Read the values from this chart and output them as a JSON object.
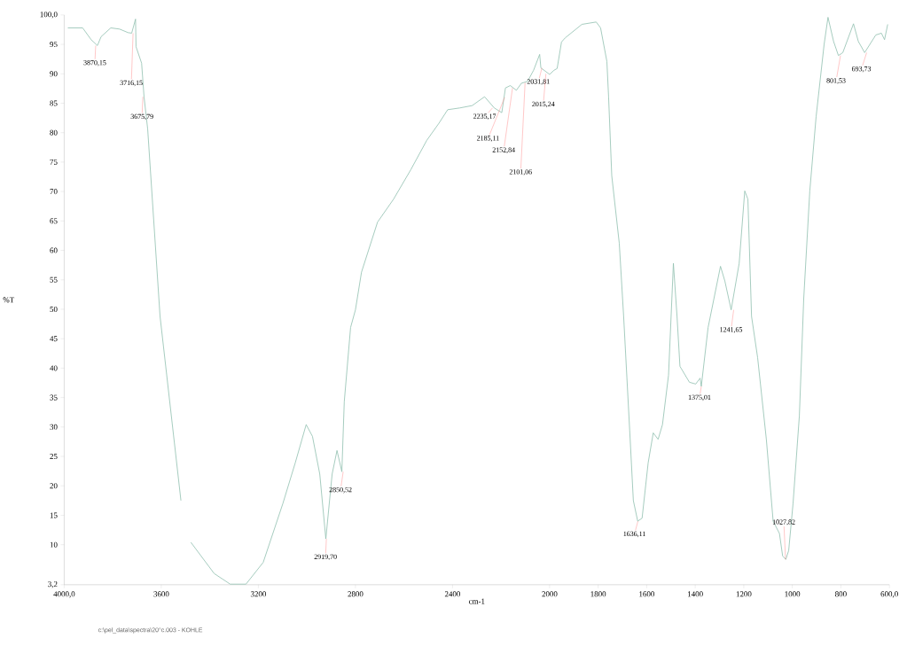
{
  "chart_data": {
    "type": "line",
    "xlabel": "cm-1",
    "ylabel": "%T",
    "color": "#8fbfae",
    "xlim": [
      4000,
      600
    ],
    "ylim": [
      3.2,
      100
    ],
    "xticks": [
      {
        "value": 4000,
        "label": "4000,0"
      },
      3600,
      3200,
      2800,
      2400,
      2000,
      1800,
      1600,
      1400,
      1200,
      1000,
      800,
      {
        "value": 600,
        "label": "600,0"
      }
    ],
    "yticks": [
      {
        "value": 3.2,
        "label": "3,2"
      },
      10,
      15,
      20,
      25,
      30,
      35,
      40,
      45,
      50,
      55,
      60,
      65,
      70,
      75,
      80,
      85,
      90,
      95,
      {
        "value": 100,
        "label": "100,0"
      }
    ],
    "x": [
      3985,
      3924,
      3889,
      3863,
      3848,
      3808,
      3772,
      3737,
      3722,
      3706,
      3704,
      3681,
      3671,
      3656,
      3605,
      3519,
      3500,
      3478,
      3382,
      3316,
      3251,
      3180,
      3099,
      3048,
      3003,
      2977,
      2947,
      2922,
      2896,
      2876,
      2856,
      2846,
      2820,
      2800,
      2775,
      2709,
      2643,
      2572,
      2506,
      2456,
      2420,
      2370,
      2319,
      2268,
      2228,
      2197,
      2182,
      2162,
      2137,
      2116,
      2091,
      2066,
      2041,
      2036,
      2000,
      1982,
      1969,
      1951,
      1936,
      1867,
      1808,
      1790,
      1764,
      1757,
      1744,
      1713,
      1695,
      1670,
      1655,
      1637,
      1619,
      1594,
      1573,
      1553,
      1535,
      1510,
      1490,
      1475,
      1463,
      1424,
      1398,
      1380,
      1375,
      1347,
      1296,
      1278,
      1252,
      1219,
      1196,
      1183,
      1168,
      1143,
      1107,
      1079,
      1053,
      1040,
      1027,
      1015,
      997,
      971,
      953,
      928,
      902,
      869,
      853,
      830,
      810,
      792,
      748,
      728,
      702,
      656,
      633,
      620,
      607
    ],
    "values": [
      97.8,
      97.8,
      95.8,
      94.8,
      96.3,
      97.8,
      97.6,
      97,
      96.9,
      99.3,
      94.6,
      91.8,
      86.1,
      80.6,
      48.8,
      17.5,
      null,
      10.4,
      5.1,
      3.3,
      3.3,
      7,
      17,
      23.9,
      30.4,
      28.4,
      22,
      11,
      22,
      26,
      22.4,
      34.3,
      46.9,
      49.9,
      56.3,
      64.8,
      68.7,
      73.7,
      78.7,
      81.6,
      83.9,
      84.2,
      84.6,
      86.1,
      84.2,
      83.4,
      87.6,
      88,
      87.2,
      88.4,
      88.7,
      90.6,
      93.3,
      91,
      89.9,
      90.6,
      90.9,
      95.4,
      96.1,
      98.4,
      98.8,
      97.8,
      92.1,
      86.1,
      72.7,
      61.2,
      48.8,
      29.4,
      17.5,
      14,
      14.5,
      23.9,
      29,
      27.9,
      30.4,
      38.8,
      57.8,
      48.8,
      40.3,
      37.6,
      37.3,
      38.3,
      36.9,
      46.9,
      57.3,
      54.8,
      49.9,
      57.8,
      70.1,
      68.7,
      48.8,
      41.8,
      27.9,
      14,
      11.9,
      8.1,
      7.5,
      9,
      17,
      31.9,
      51.8,
      70.1,
      82.7,
      95,
      99.6,
      95.5,
      93.1,
      93.6,
      98.5,
      95.5,
      93.6,
      96.6,
      96.9,
      95.8,
      98.4
    ],
    "annotations": [
      {
        "text": "3870,15",
        "x": 3870.15,
        "y": 94.8
      },
      {
        "text": "3716,15",
        "x": 3716.15,
        "y": 96.9
      },
      {
        "text": "3675,79",
        "x": 3675.79,
        "y": 86.1
      },
      {
        "text": "2919,70",
        "x": 2919.7,
        "y": 11
      },
      {
        "text": "2850,52",
        "x": 2850.52,
        "y": 22.4
      },
      {
        "text": "2235,17",
        "x": 2235.17,
        "y": 84.2
      },
      {
        "text": "2185,11",
        "x": 2185.11,
        "y": 86
      },
      {
        "text": "2152,84",
        "x": 2152.84,
        "y": 87.6
      },
      {
        "text": "2101,06",
        "x": 2101.06,
        "y": 88.5
      },
      {
        "text": "2031,81",
        "x": 2031.81,
        "y": 91
      },
      {
        "text": "2015,24",
        "x": 2015.24,
        "y": 90
      },
      {
        "text": "1636,11",
        "x": 1636.11,
        "y": 14
      },
      {
        "text": "1375,01",
        "x": 1375.01,
        "y": 36.9
      },
      {
        "text": "1241,65",
        "x": 1241.65,
        "y": 49.9
      },
      {
        "text": "1027,82",
        "x": 1027.82,
        "y": 7.5
      },
      {
        "text": "801,53",
        "x": 801.53,
        "y": 93.1
      },
      {
        "text": "693,73",
        "x": 693.73,
        "y": 93.6
      },
      "c:\\pel_data\\spectra\\20°c.003 - KOHLE"
    ]
  }
}
